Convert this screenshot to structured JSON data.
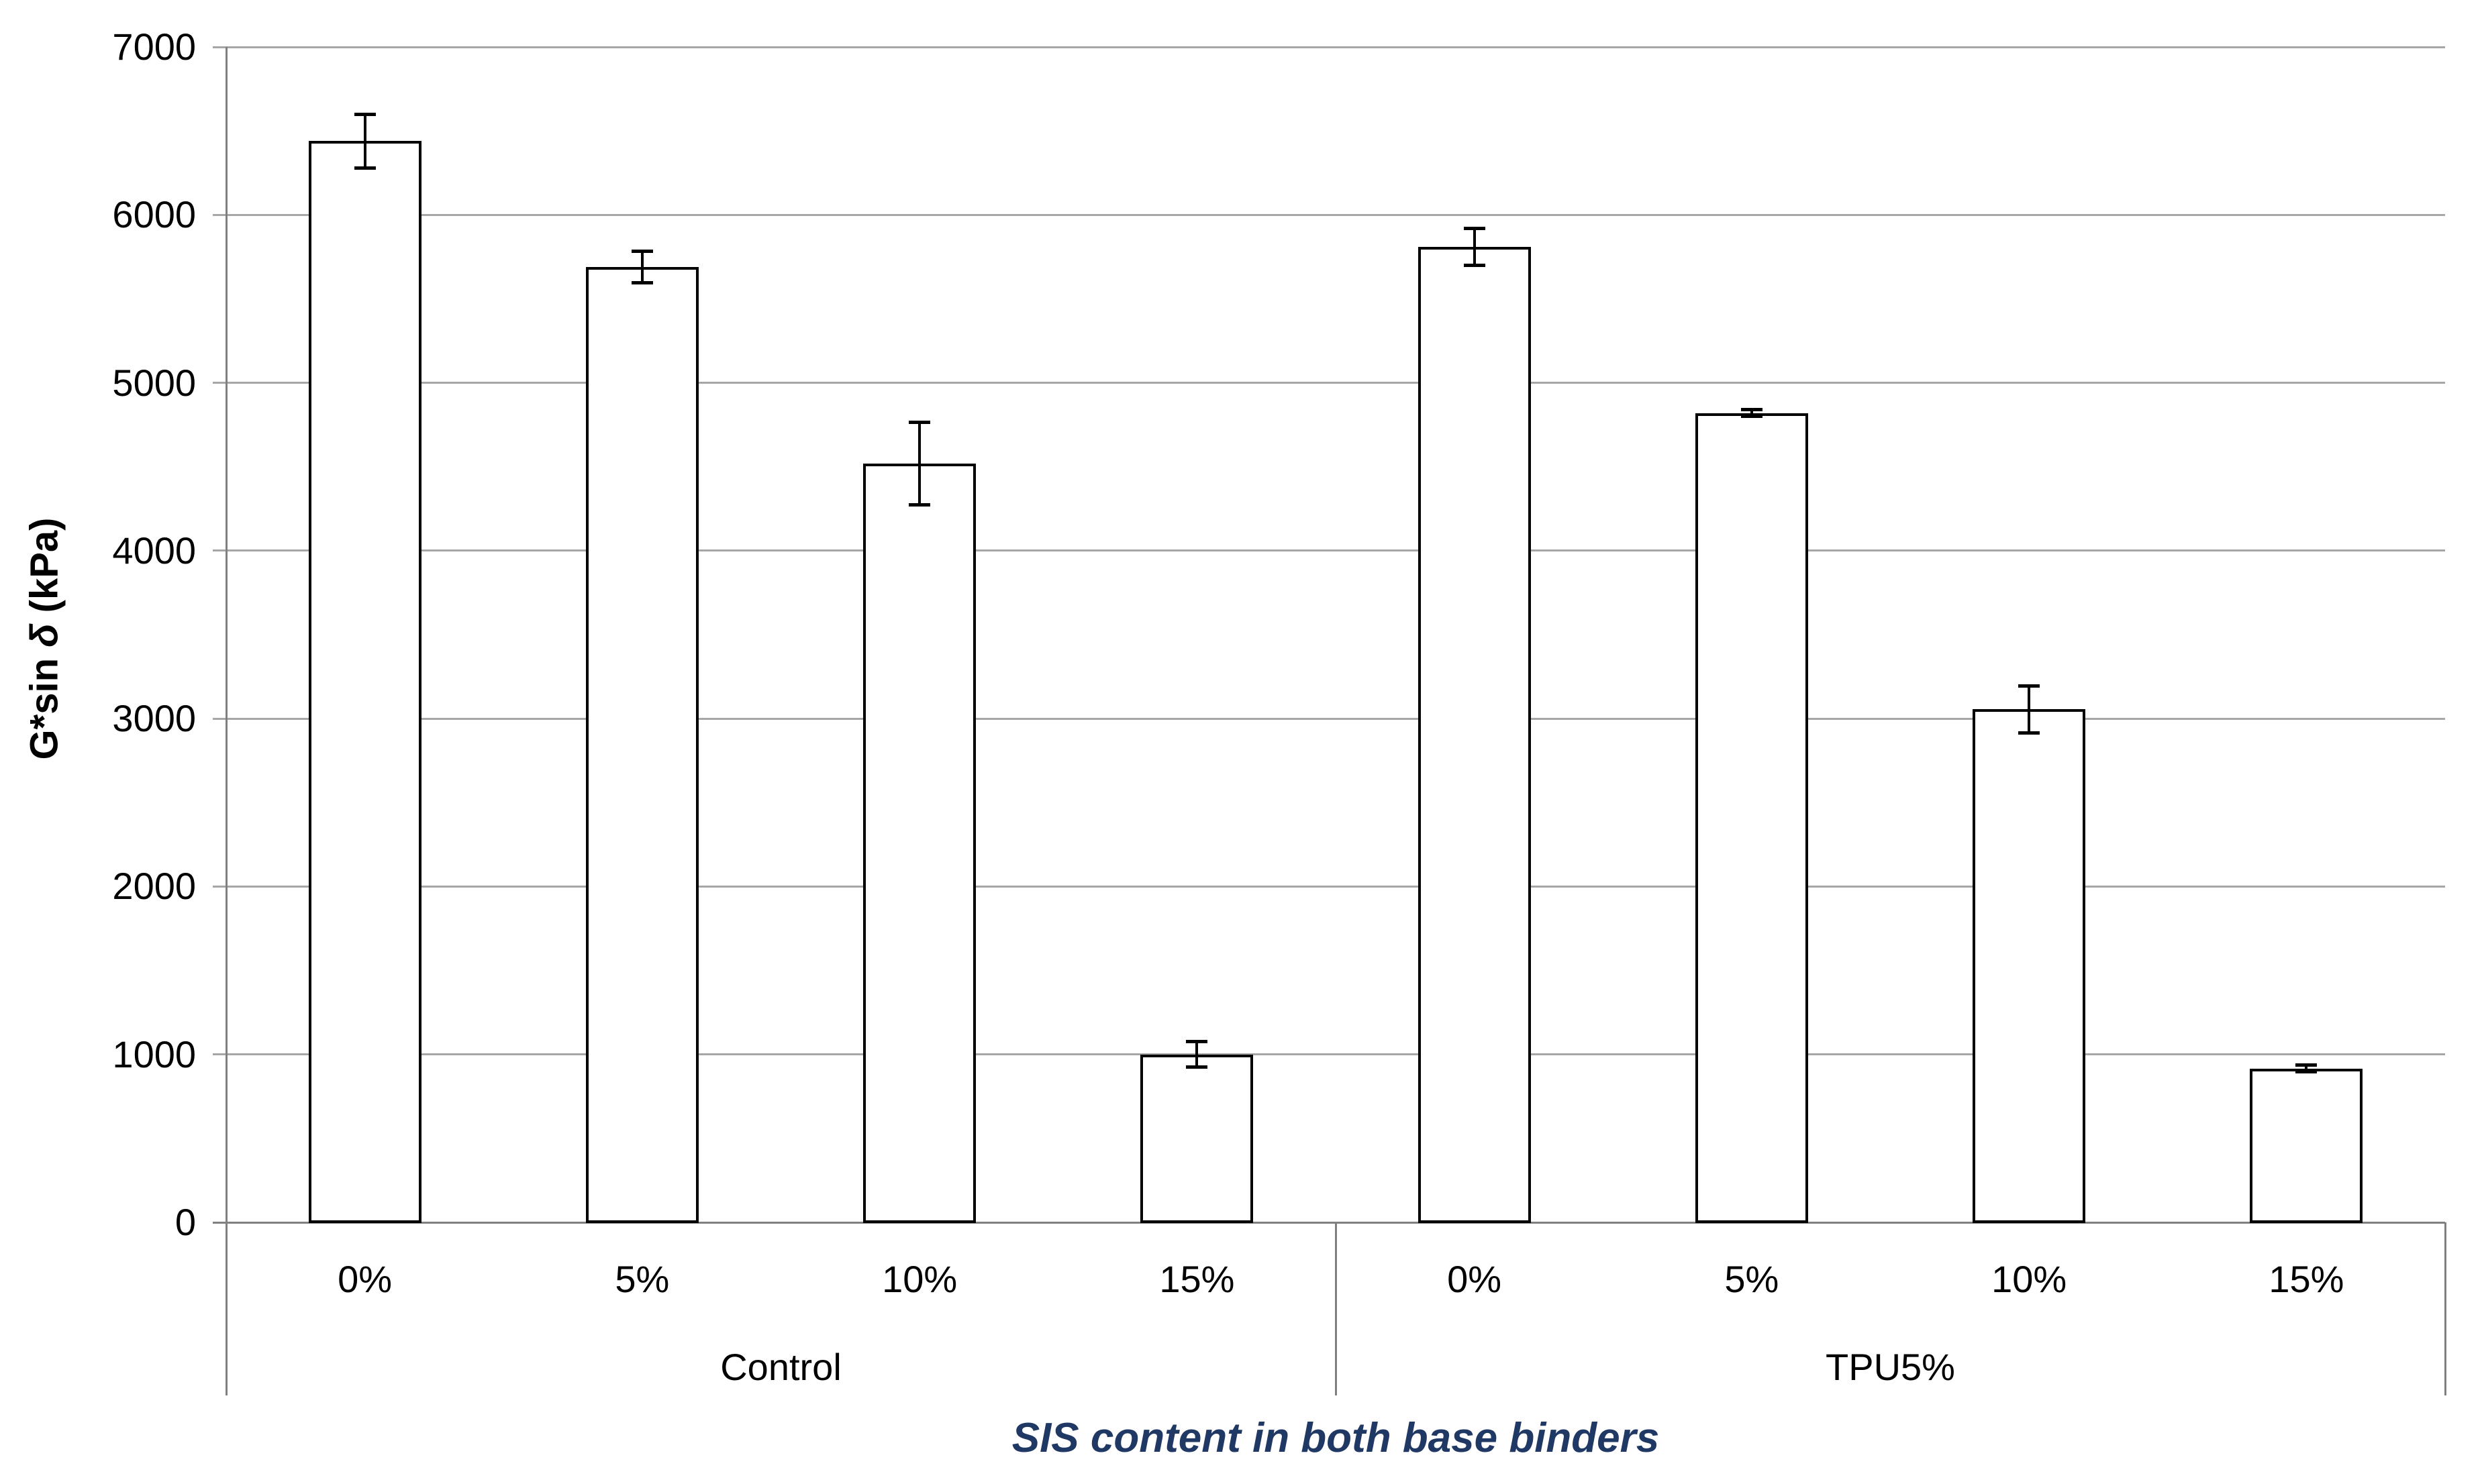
{
  "page": {
    "background": "#ffffff"
  },
  "chart_data": {
    "type": "bar",
    "title": "",
    "ylabel": "G*sin δ (kPa)",
    "ylabel_parts": {
      "pre": "G*sin ",
      "delta": "δ",
      "post": " (kPa)"
    },
    "xlabel": "SIS content in both base binders",
    "ylim": [
      0,
      7000
    ],
    "yticks": [
      0,
      1000,
      2000,
      3000,
      4000,
      5000,
      6000,
      7000
    ],
    "grid": true,
    "legend": false,
    "error_bars": true,
    "bar_fill": "#FFFFFF",
    "bar_stroke": "#000000",
    "gridline_color": "#A6A6A6",
    "axis_color": "#808080",
    "text_color": "#000000",
    "xlabel_color": "#1F3864",
    "groups": [
      {
        "label": "Control",
        "categories": [
          "0%",
          "5%",
          "10%",
          "15%"
        ],
        "values": [
          6440,
          5690,
          4520,
          1000
        ],
        "errors": [
          160,
          95,
          245,
          75
        ]
      },
      {
        "label": "TPU5%",
        "categories": [
          "0%",
          "5%",
          "10%",
          "15%"
        ],
        "values": [
          5810,
          4820,
          3055,
          915
        ],
        "errors": [
          110,
          20,
          140,
          20
        ]
      }
    ]
  }
}
